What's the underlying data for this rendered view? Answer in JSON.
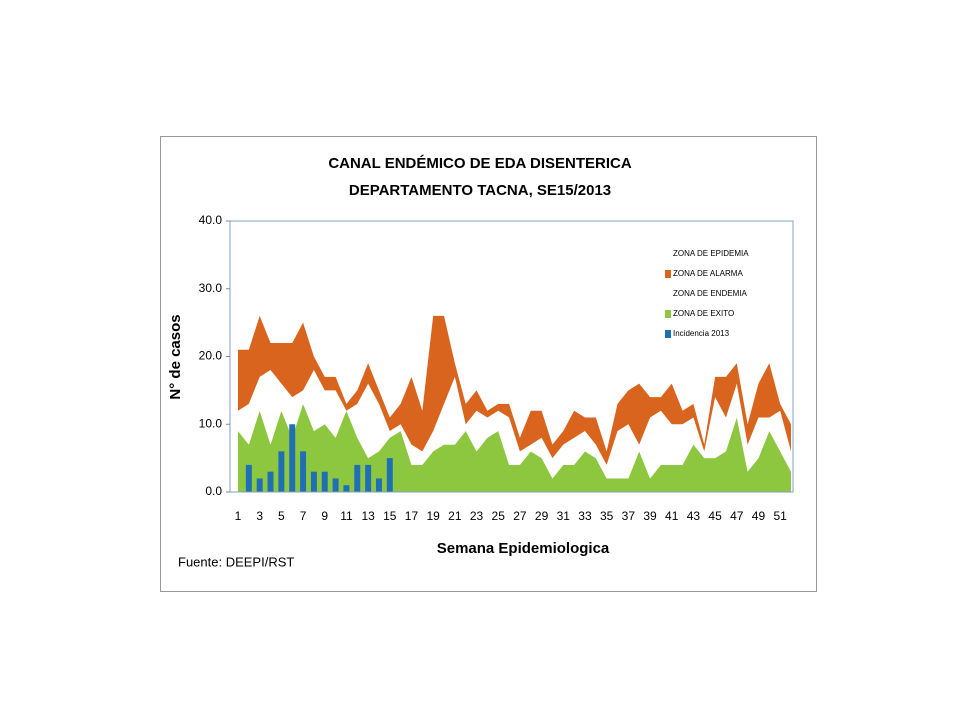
{
  "chart_data": {
    "type": "area",
    "title": [
      "CANAL ENDÉMICO DE EDA DISENTERICA",
      "DEPARTAMENTO TACNA,  SE15/2013"
    ],
    "y_label": "N° de casos",
    "x_label": "Semana Epidemiologica",
    "source": "Fuente: DEEPI/RST",
    "categories": [
      1,
      null,
      3,
      null,
      5,
      null,
      7,
      null,
      9,
      null,
      11,
      null,
      13,
      null,
      15,
      null,
      17,
      null,
      19,
      null,
      21,
      null,
      23,
      null,
      25,
      null,
      27,
      null,
      29,
      null,
      31,
      null,
      33,
      null,
      35,
      null,
      37,
      null,
      39,
      null,
      41,
      null,
      43,
      null,
      45,
      null,
      47,
      null,
      49,
      null,
      51,
      null
    ],
    "ylim": [
      0,
      40
    ],
    "yticks": [
      {
        "value": 0,
        "label": "0.0"
      },
      {
        "value": 10,
        "label": "10.0"
      },
      {
        "value": 20,
        "label": "20.0"
      },
      {
        "value": 30,
        "label": "30.0"
      },
      {
        "value": 40,
        "label": "40.0"
      }
    ],
    "stacked": true,
    "series": [
      {
        "name": "ZONA DE EPIDEMIA",
        "color": "#ffffff"
      },
      {
        "name": "ZONA DE ALARMA",
        "color": "#d9641e",
        "values": [
          9,
          8,
          9,
          4,
          6,
          8,
          10,
          2,
          2,
          2,
          1,
          2,
          3,
          2,
          2,
          3,
          10,
          6,
          17,
          13,
          2,
          3,
          3,
          1,
          1,
          2,
          2,
          5,
          4,
          2,
          2,
          4,
          2,
          4,
          2,
          4,
          5,
          9,
          3,
          2,
          6,
          2,
          2,
          1,
          3,
          6,
          3,
          3,
          5,
          8,
          1,
          4
        ]
      },
      {
        "name": "ZONA DE ENDEMIA",
        "color": "#ffffff",
        "values": [
          3,
          6,
          5,
          11,
          4,
          6,
          2,
          9,
          5,
          7,
          0,
          5,
          11,
          7,
          1,
          1,
          3,
          2,
          3,
          6,
          10,
          1,
          6,
          3,
          3,
          7,
          2,
          1,
          3,
          3,
          3,
          4,
          3,
          2,
          2,
          7,
          8,
          1,
          9,
          8,
          6,
          6,
          4,
          1,
          9,
          5,
          5,
          4,
          6,
          2,
          6,
          3
        ]
      },
      {
        "name": "ZONA DE EXITO",
        "color": "#8dc63f",
        "values": [
          9,
          7,
          12,
          7,
          12,
          8,
          13,
          9,
          10,
          8,
          12,
          8,
          5,
          6,
          8,
          9,
          4,
          4,
          6,
          7,
          7,
          9,
          6,
          8,
          9,
          4,
          4,
          6,
          5,
          2,
          4,
          4,
          6,
          5,
          2,
          2,
          2,
          6,
          2,
          4,
          4,
          4,
          7,
          5,
          5,
          6,
          11,
          3,
          5,
          9,
          6,
          3
        ]
      },
      {
        "name": "Incidencia 2013",
        "color": "#1f6fb4",
        "type": "bar",
        "values": [
          null,
          4,
          2,
          3,
          6,
          10,
          6,
          3,
          3,
          2,
          1,
          4,
          4,
          2,
          5,
          null,
          null,
          null,
          null,
          null,
          null,
          null,
          null,
          null,
          null,
          null,
          null,
          null,
          null,
          null,
          null,
          null,
          null,
          null,
          null,
          null,
          null,
          null,
          null,
          null,
          null,
          null,
          null,
          null,
          null,
          null,
          null,
          null,
          null,
          null,
          null,
          null
        ]
      }
    ]
  }
}
